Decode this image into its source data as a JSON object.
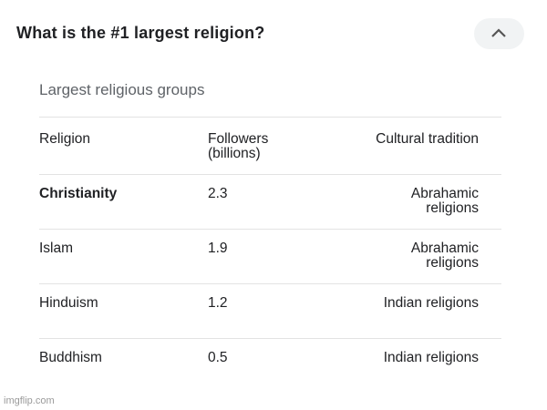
{
  "question": "What is the #1 largest religion?",
  "panel": {
    "title": "Largest religious groups",
    "table": {
      "header": [
        "Religion",
        "Followers (billions)",
        "Cultural tradition"
      ],
      "rows": [
        [
          "Christianity",
          "2.3",
          "Abrahamic religions"
        ],
        [
          "Islam",
          "1.9",
          "Abrahamic religions"
        ],
        [
          "Hinduism",
          "1.2",
          "Indian religions"
        ],
        [
          "Buddhism",
          "0.5",
          "Indian religions"
        ]
      ]
    }
  },
  "watermark": "imgflip.com"
}
